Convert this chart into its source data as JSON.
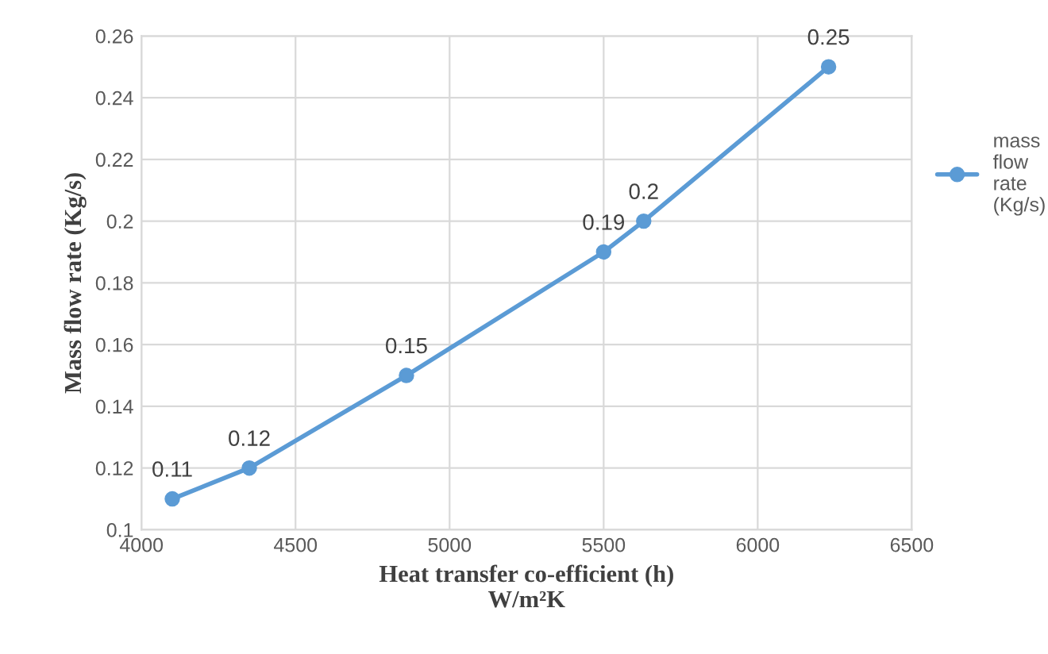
{
  "chart_data": {
    "type": "line",
    "xlabel": "Heat transfer co-efficient (h)\nW/m²K",
    "ylabel": "Mass flow rate (Kg/s)",
    "x": [
      4100,
      4350,
      4860,
      5500,
      5630,
      6230
    ],
    "series": [
      {
        "name": "mass\nflow\nrate\n(Kg/s)",
        "color": "#5b9bd5",
        "values": [
          0.11,
          0.12,
          0.15,
          0.19,
          0.2,
          0.25
        ]
      }
    ],
    "xlim": [
      4000,
      6500
    ],
    "xticks": [
      4000,
      4500,
      5000,
      5500,
      6000,
      6500
    ],
    "ylim": [
      0.1,
      0.26
    ],
    "yticks": [
      0.1,
      0.12,
      0.14,
      0.16,
      0.18,
      0.2,
      0.22,
      0.24,
      0.26
    ],
    "grid": true,
    "legend": "right",
    "marker": "circle",
    "line_style": "solid",
    "data_labels": true
  }
}
